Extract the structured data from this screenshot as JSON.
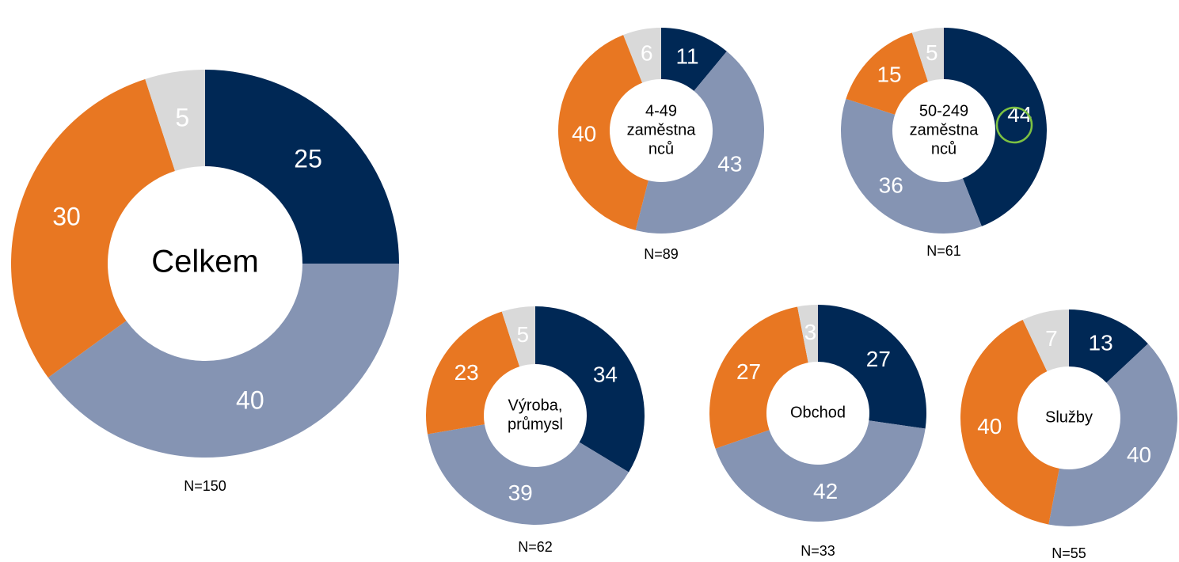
{
  "chart_data": [
    {
      "type": "donut",
      "title_lines": [
        "Celkem"
      ],
      "values": [
        25,
        40,
        30,
        5
      ],
      "colors": [
        "#002855",
        "#8594b3",
        "#e87722",
        "#d9d9d9"
      ],
      "note": "N=150"
    },
    {
      "type": "donut",
      "title_lines": [
        "4-49",
        "zaměstna",
        "nců"
      ],
      "values": [
        11,
        43,
        40,
        6
      ],
      "colors": [
        "#002855",
        "#8594b3",
        "#e87722",
        "#d9d9d9"
      ],
      "note": "N=89"
    },
    {
      "type": "donut",
      "title_lines": [
        "50-249",
        "zaměstna",
        "nců"
      ],
      "values": [
        44,
        36,
        15,
        5
      ],
      "colors": [
        "#002855",
        "#8594b3",
        "#e87722",
        "#d9d9d9"
      ],
      "note": "N=61"
    },
    {
      "type": "donut",
      "title_lines": [
        "Výroba,",
        "průmysl"
      ],
      "values": [
        34,
        39,
        23,
        5
      ],
      "colors": [
        "#002855",
        "#8594b3",
        "#e87722",
        "#d9d9d9"
      ],
      "note": "N=62"
    },
    {
      "type": "donut",
      "title_lines": [
        "Obchod"
      ],
      "values": [
        27,
        42,
        27,
        3
      ],
      "colors": [
        "#002855",
        "#8594b3",
        "#e87722",
        "#d9d9d9"
      ],
      "note": "N=33"
    },
    {
      "type": "donut",
      "title_lines": [
        "Služby"
      ],
      "values": [
        13,
        40,
        40,
        7
      ],
      "colors": [
        "#002855",
        "#8594b3",
        "#e87722",
        "#d9d9d9"
      ],
      "note": "N=55"
    }
  ]
}
